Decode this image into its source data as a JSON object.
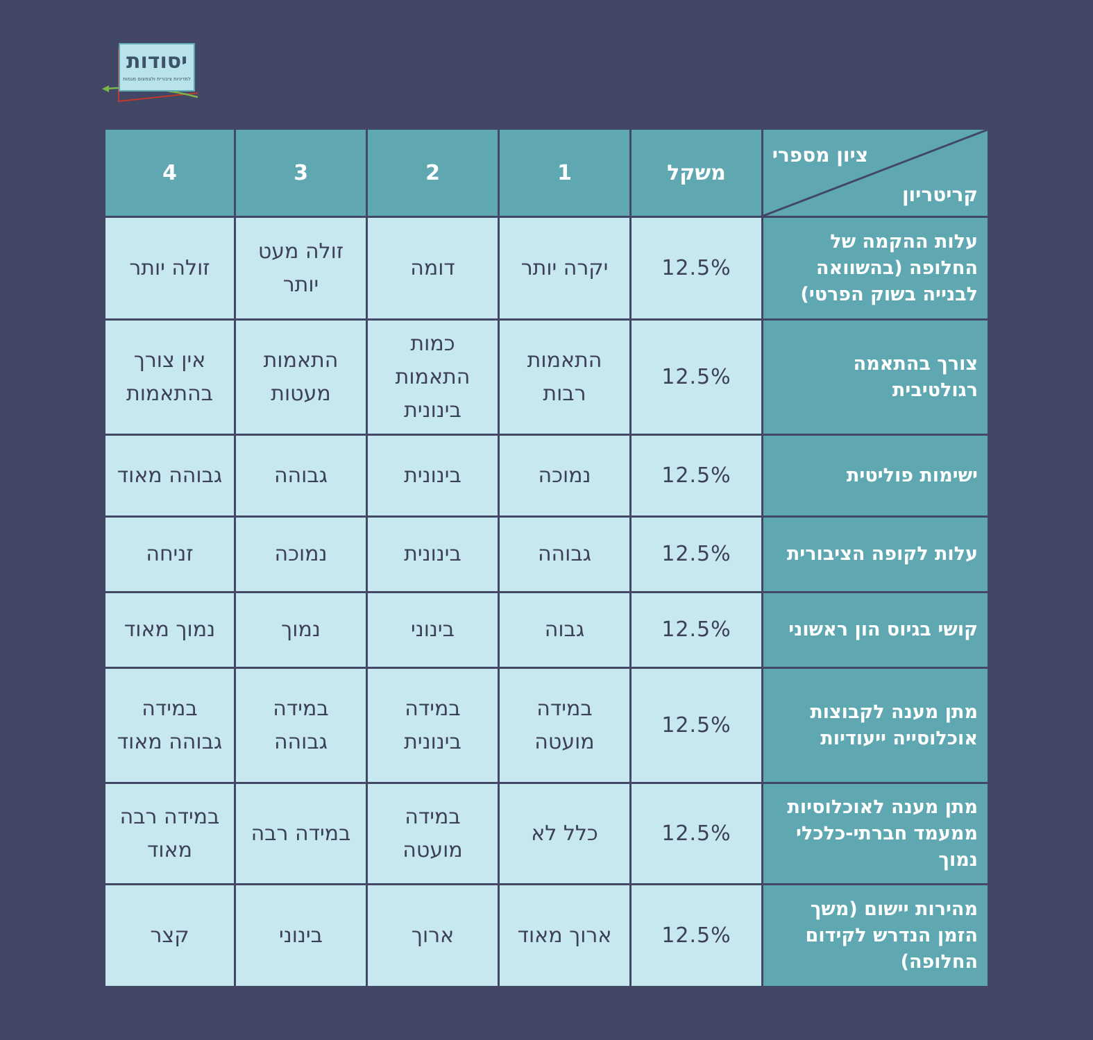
{
  "logo": {
    "title": "יסודות",
    "subtitle": "למדיניות ציבורית ולצמצום מגמות (ע\"ר)"
  },
  "table": {
    "corner_top": "ציון מספרי",
    "corner_bottom": "קריטריון",
    "weight_header": "משקל",
    "score_headers": [
      "1",
      "2",
      "3",
      "4"
    ],
    "rows": [
      {
        "criterion": "עלות ההקמה של החלופה (בהשוואה לבנייה בשוק הפרטי)",
        "weight": "12.5%",
        "scores": [
          "יקרה יותר",
          "דומה",
          "זולה מעט יותר",
          "זולה יותר"
        ]
      },
      {
        "criterion": "צורך בהתאמה רגולטיבית",
        "weight": "12.5%",
        "scores": [
          "התאמות רבות",
          "כמות התאמות בינונית",
          "התאמות מעטות",
          "אין צורך בהתאמות"
        ]
      },
      {
        "criterion": "ישימות פוליטית",
        "weight": "12.5%",
        "scores": [
          "נמוכה",
          "בינונית",
          "גבוהה",
          "גבוהה מאוד"
        ]
      },
      {
        "criterion": "עלות לקופה הציבורית",
        "weight": "12.5%",
        "scores": [
          "גבוהה",
          "בינונית",
          "נמוכה",
          "זניחה"
        ]
      },
      {
        "criterion": "קושי בגיוס הון ראשוני",
        "weight": "12.5%",
        "scores": [
          "גבוה",
          "בינוני",
          "נמוך",
          "נמוך מאוד"
        ]
      },
      {
        "criterion": "מתן מענה לקבוצות אוכלוסייה ייעודיות",
        "weight": "12.5%",
        "scores": [
          "במידה מועטה",
          "במידה בינונית",
          "במידה גבוהה",
          "במידה גבוהה מאוד"
        ]
      },
      {
        "criterion": "מתן מענה לאוכלוסיות ממעמד חברתי-כלכלי נמוך",
        "weight": "12.5%",
        "scores": [
          "כלל לא",
          "במידה מועטה",
          "במידה רבה",
          "במידה רבה מאוד"
        ]
      },
      {
        "criterion": "מהירות יישום (משך הזמן הנדרש לקידום החלופה)",
        "weight": "12.5%",
        "scores": [
          "ארוך מאוד",
          "ארוך",
          "בינוני",
          "קצר"
        ]
      }
    ]
  },
  "colors": {
    "background": "#434766",
    "header_teal": "#5fa8b2",
    "cell_light": "#c8e8ef",
    "text_dark": "#3c4157",
    "logo_red": "#c0392b",
    "logo_green": "#7ab648"
  }
}
